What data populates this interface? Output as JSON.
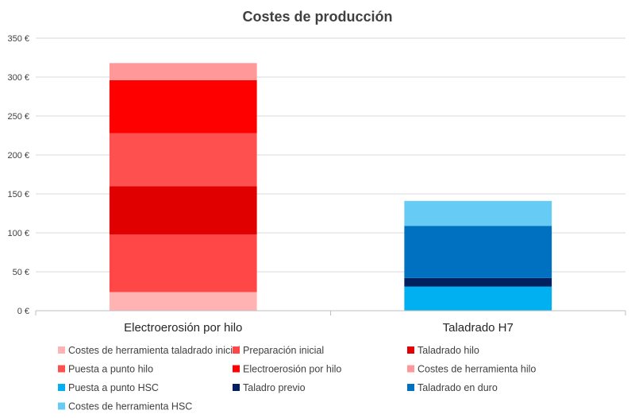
{
  "chart_data": {
    "type": "bar",
    "stacked": true,
    "title": "Costes de producción",
    "categories": [
      "Electroerosión por hilo",
      "Taladrado H7"
    ],
    "ylim": [
      0,
      350
    ],
    "y_ticks": [
      "0 €",
      "50 €",
      "100 €",
      "150 €",
      "200 €",
      "250 €",
      "300 €",
      "350 €"
    ],
    "y_tick_values": [
      0,
      50,
      100,
      150,
      200,
      250,
      300,
      350
    ],
    "grid": true,
    "legend_position": "bottom",
    "series": [
      {
        "name": "Costes de herramienta taladrado inicial",
        "color": "#FFB3B3",
        "values": [
          24,
          0
        ]
      },
      {
        "name": "Preparación inicial",
        "color": "#FF4747",
        "values": [
          74,
          0
        ]
      },
      {
        "name": "Taladrado hilo",
        "color": "#E00000",
        "values": [
          62,
          0
        ]
      },
      {
        "name": "Puesta a punto hilo",
        "color": "#FF5050",
        "values": [
          68,
          0
        ]
      },
      {
        "name": "Electroerosión por hilo",
        "color": "#FF0000",
        "values": [
          68,
          0
        ]
      },
      {
        "name": "Costes de herramienta hilo",
        "color": "#FF9999",
        "values": [
          22,
          0
        ]
      },
      {
        "name": "Puesta a punto HSC",
        "color": "#00B0F0",
        "values": [
          0,
          31
        ]
      },
      {
        "name": "Taladro previo",
        "color": "#002060",
        "values": [
          0,
          11
        ]
      },
      {
        "name": "Taladrado en duro",
        "color": "#0070C0",
        "values": [
          0,
          67
        ]
      },
      {
        "name": "Costes de herramienta HSC",
        "color": "#66CCF5",
        "values": [
          0,
          32
        ]
      }
    ]
  }
}
